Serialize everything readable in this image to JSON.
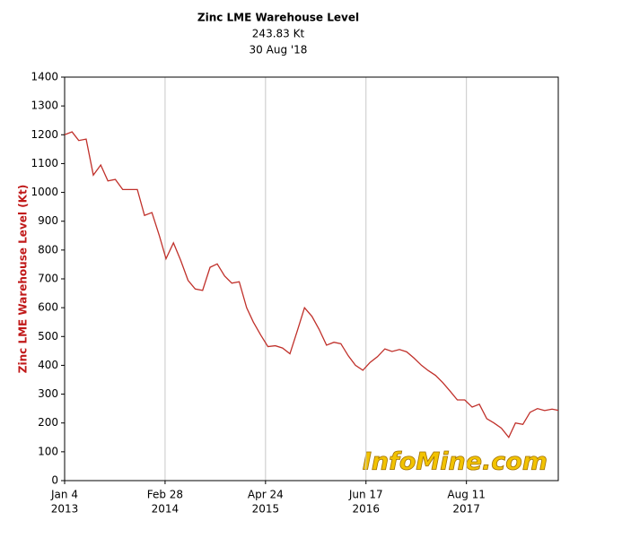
{
  "chart_data": {
    "type": "line",
    "title": "Zinc LME Warehouse Level",
    "subtitle": "243.83 Kt",
    "date": "30 Aug '18",
    "y_label": "Zinc LME Warehouse Level (Kt)",
    "watermark": "InfoMine.com",
    "grid": "x",
    "color": "#c0302a",
    "x": [
      "2013-01-04",
      "2013-02-04",
      "2013-03-04",
      "2013-04-04",
      "2013-05-04",
      "2013-06-04",
      "2013-07-04",
      "2013-08-04",
      "2013-09-04",
      "2013-10-04",
      "2013-11-04",
      "2013-12-04",
      "2014-01-04",
      "2014-02-04",
      "2014-03-04",
      "2014-04-04",
      "2014-05-04",
      "2014-06-04",
      "2014-07-04",
      "2014-08-04",
      "2014-09-04",
      "2014-10-04",
      "2014-11-04",
      "2014-12-04",
      "2015-01-04",
      "2015-02-04",
      "2015-03-04",
      "2015-04-04",
      "2015-05-04",
      "2015-06-04",
      "2015-07-04",
      "2015-08-04",
      "2015-09-04",
      "2015-10-04",
      "2015-11-04",
      "2015-12-04",
      "2016-01-04",
      "2016-02-04",
      "2016-03-04",
      "2016-04-04",
      "2016-05-04",
      "2016-06-04",
      "2016-07-04",
      "2016-08-04",
      "2016-09-04",
      "2016-10-04",
      "2016-11-04",
      "2016-12-04",
      "2017-01-04",
      "2017-02-04",
      "2017-03-04",
      "2017-04-04",
      "2017-05-04",
      "2017-06-04",
      "2017-07-04",
      "2017-08-04",
      "2017-09-04",
      "2017-10-04",
      "2017-11-04",
      "2017-12-04",
      "2018-01-04",
      "2018-02-04",
      "2018-03-04",
      "2018-04-04",
      "2018-05-04",
      "2018-06-04",
      "2018-07-04",
      "2018-08-04",
      "2018-08-30"
    ],
    "values": [
      1200,
      1210,
      1180,
      1185,
      1060,
      1095,
      1040,
      1045,
      1010,
      1010,
      1010,
      920,
      930,
      850,
      770,
      825,
      765,
      695,
      665,
      660,
      740,
      752,
      710,
      685,
      690,
      600,
      550,
      505,
      465,
      468,
      460,
      440,
      520,
      600,
      570,
      525,
      470,
      480,
      475,
      433,
      400,
      383,
      410,
      430,
      457,
      448,
      455,
      447,
      425,
      400,
      382,
      365,
      340,
      310,
      280,
      280,
      255,
      265,
      215,
      200,
      182,
      150,
      200,
      195,
      237,
      250,
      243,
      248,
      243.83
    ],
    "xlim": [
      "2013-01-04",
      "2018-08-30"
    ],
    "xticks": [
      {
        "value": "2013-01-04",
        "label": [
          "Jan 4",
          "2013"
        ]
      },
      {
        "value": "2014-02-28",
        "label": [
          "Feb 28",
          "2014"
        ]
      },
      {
        "value": "2015-04-24",
        "label": [
          "Apr 24",
          "2015"
        ]
      },
      {
        "value": "2016-06-17",
        "label": [
          "Jun 17",
          "2016"
        ]
      },
      {
        "value": "2017-08-11",
        "label": [
          "Aug 11",
          "2017"
        ]
      }
    ],
    "ylim": [
      0,
      1400
    ],
    "yticks": [
      0,
      100,
      200,
      300,
      400,
      500,
      600,
      700,
      800,
      900,
      1000,
      1100,
      1200,
      1300,
      1400
    ]
  }
}
